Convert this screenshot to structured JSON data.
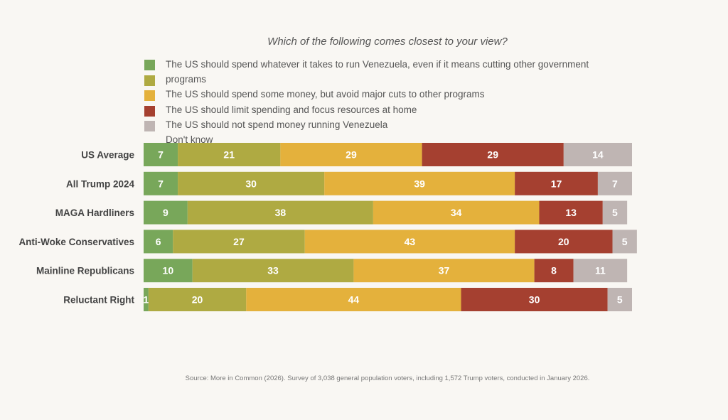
{
  "chart_data": {
    "type": "bar",
    "orientation": "horizontal",
    "stacked": true,
    "title": "Which of the following comes closest to your view?",
    "categories": [
      "US Average",
      "All Trump 2024",
      "MAGA Hardliners",
      "Anti-Woke Conservatives",
      "Mainline Republicans",
      "Reluctant Right"
    ],
    "series": [
      {
        "name": "The US should spend whatever it takes to run Venezuela, even if it means cutting other government programs",
        "color": "#78a75a",
        "values": [
          7,
          7,
          9,
          6,
          10,
          1
        ]
      },
      {
        "name": "The US should spend some money, but avoid major cuts to other programs",
        "color": "#afaa42",
        "values": [
          21,
          30,
          38,
          27,
          33,
          20
        ]
      },
      {
        "name": "The US should limit spending and focus resources at home",
        "color": "#e4b13c",
        "values": [
          29,
          39,
          34,
          43,
          37,
          44
        ]
      },
      {
        "name": "The US should not spend money running Venezuela",
        "color": "#a54030",
        "values": [
          29,
          17,
          13,
          20,
          8,
          30
        ]
      },
      {
        "name": "Don't know",
        "color": "#bfb5b3",
        "values": [
          14,
          7,
          5,
          5,
          11,
          5
        ]
      }
    ],
    "legend_lines": [
      "The US should spend whatever it takes to run Venezuela, even if it means cutting other government",
      "programs",
      "The US should spend some money, but avoid major cuts to other programs",
      "The US should limit spending and focus resources at home",
      "The US should not spend money running Venezuela",
      "Don't know"
    ],
    "legend_placement": "top",
    "grid": false,
    "xlim": [
      0,
      100
    ],
    "source": "Source: More in Common (2026). Survey of 3,038 general population voters, including 1,572 Trump voters, conducted in January 2026."
  }
}
